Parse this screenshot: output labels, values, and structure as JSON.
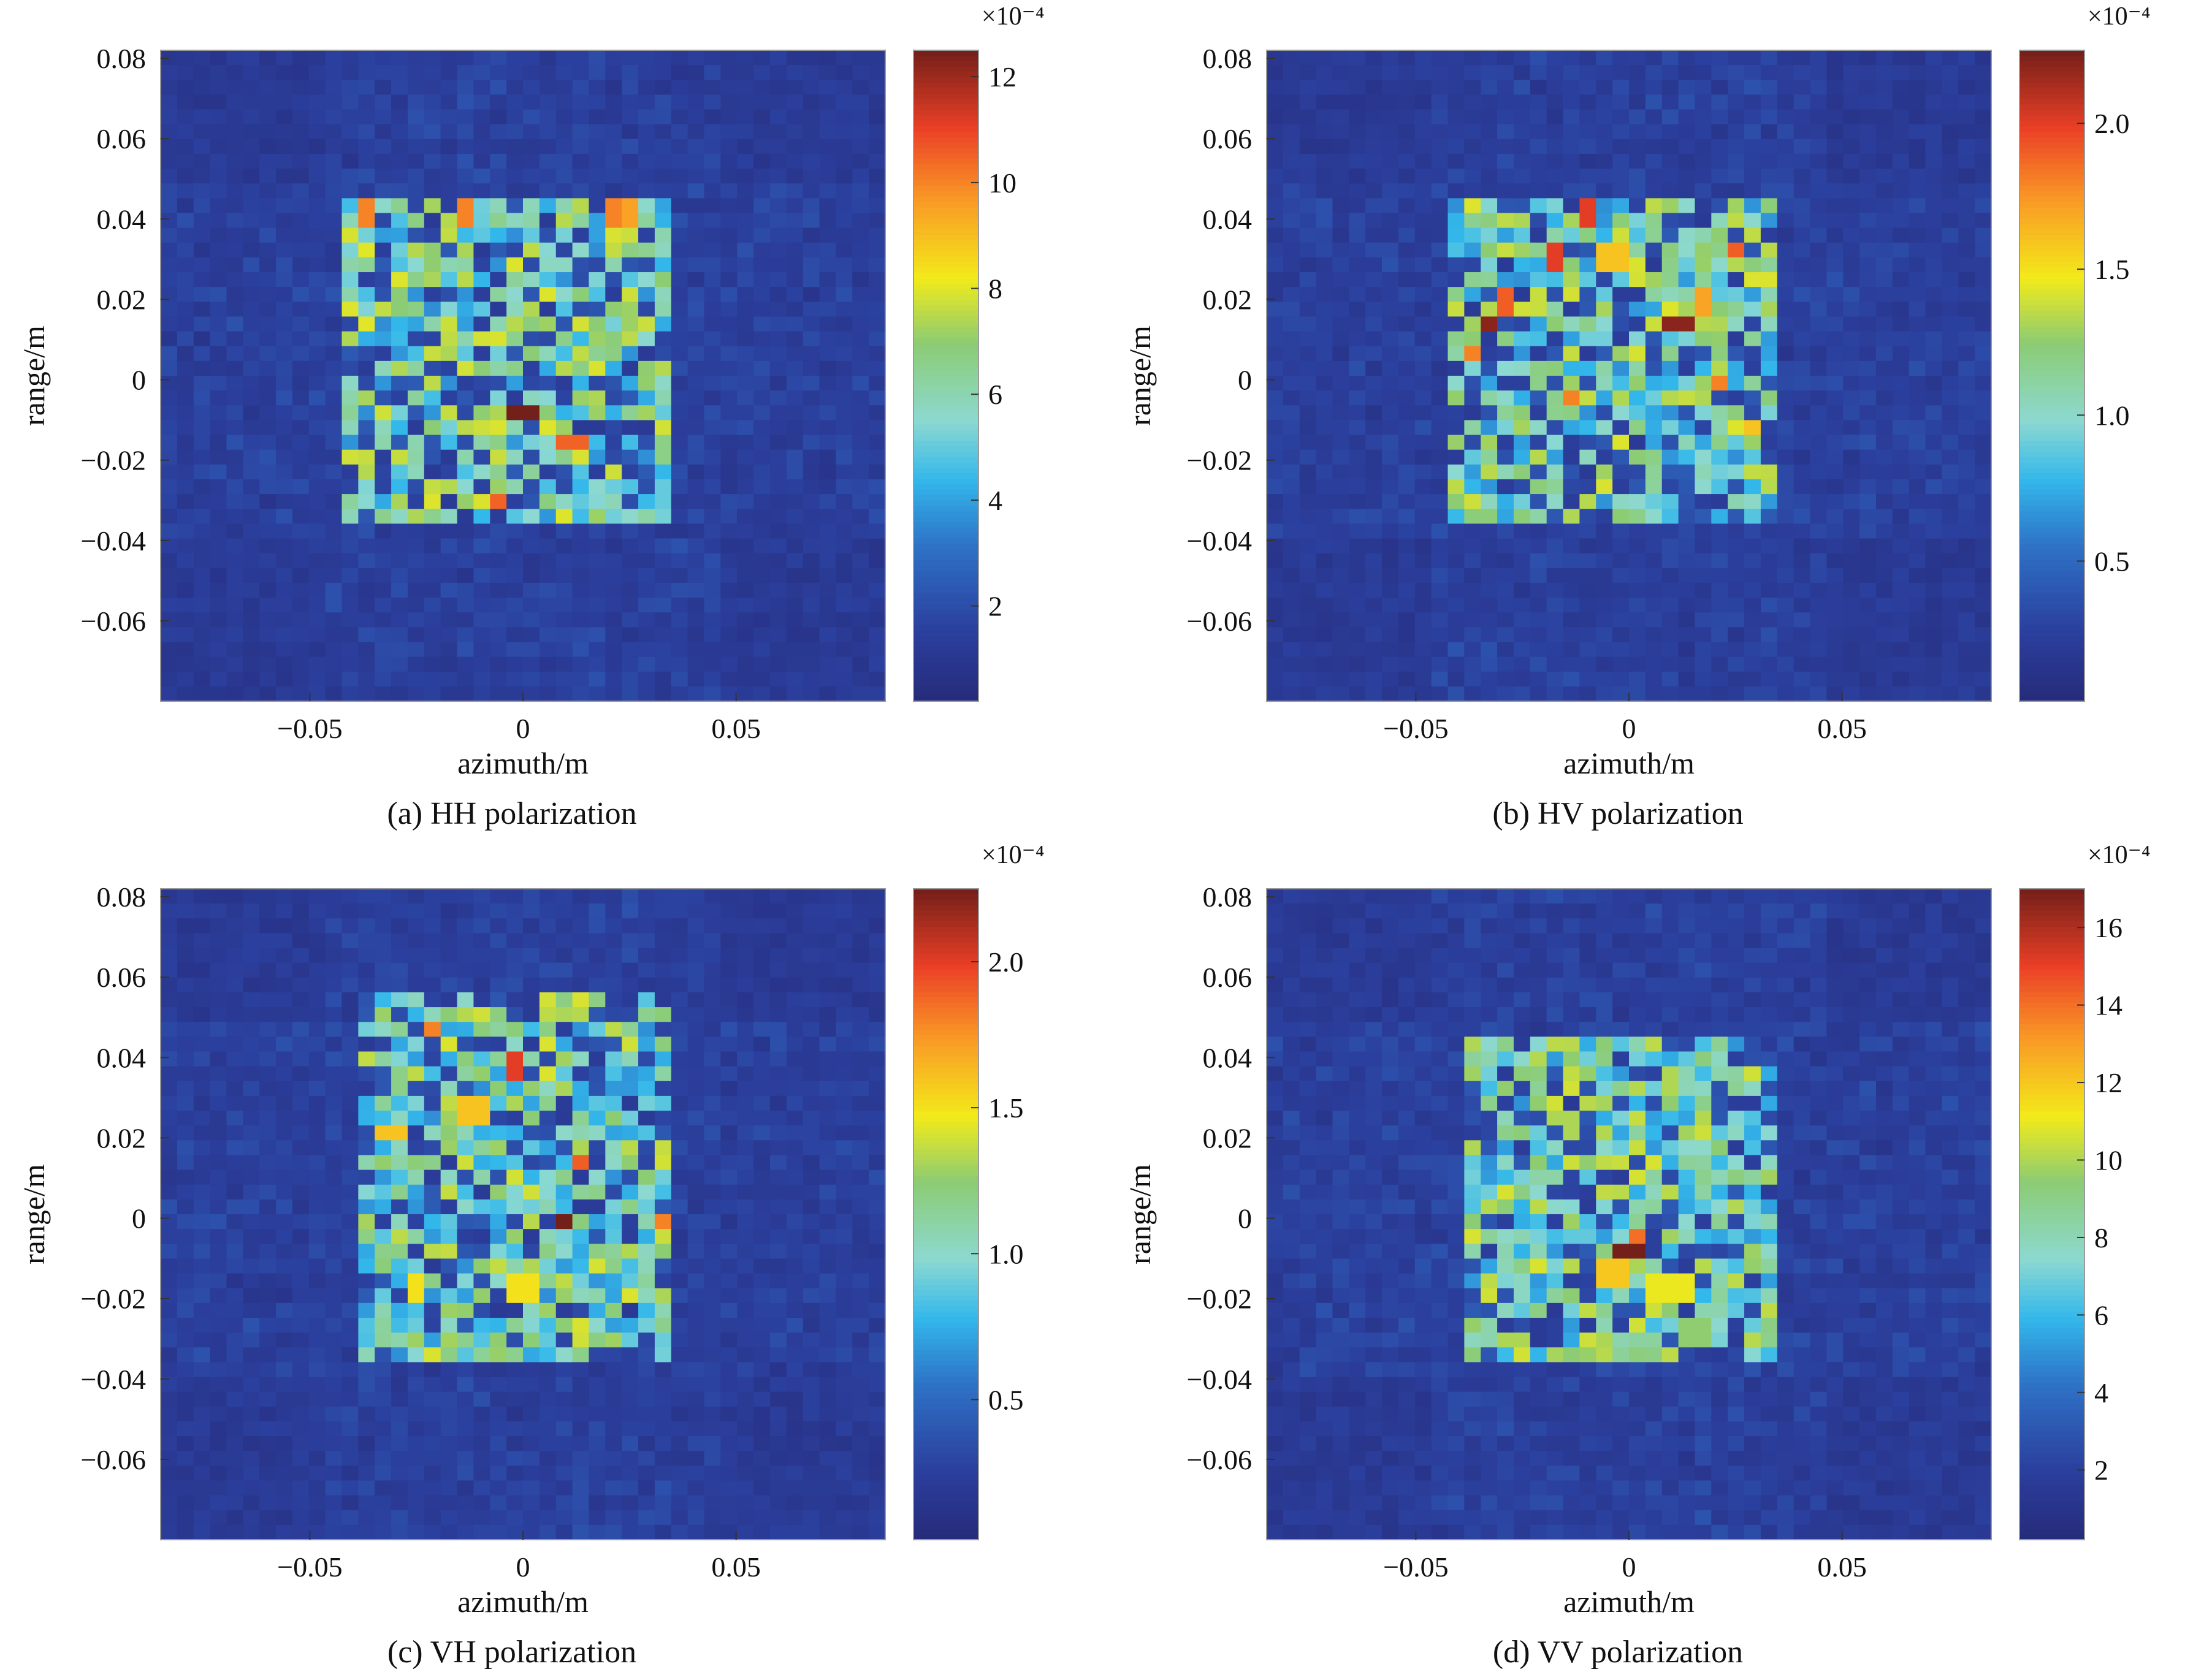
{
  "chart_data": [
    {
      "type": "heatmap",
      "caption": "(a) HH polarization",
      "xlabel": "azimuth/m",
      "ylabel": "range/m",
      "xlim": [
        -0.085,
        0.085
      ],
      "ylim": [
        -0.08,
        0.082
      ],
      "xticks": [
        -0.05,
        0,
        0.05
      ],
      "xtick_labels": [
        "−0.05",
        "0",
        "0.05"
      ],
      "yticks": [
        0.08,
        0.06,
        0.04,
        0.02,
        0,
        -0.02,
        -0.04,
        -0.06
      ],
      "ytick_labels": [
        "0.08",
        "0.06",
        "0.04",
        "0.02",
        "0",
        "−0.02",
        "−0.04",
        "−0.06"
      ],
      "colorbar": {
        "min": 0.2,
        "max": 12.5,
        "exponent_label": "×10⁻⁴",
        "ticks": [
          2,
          4,
          6,
          8,
          10,
          12
        ],
        "tick_labels": [
          "2",
          "4",
          "6",
          "8",
          "10",
          "12"
        ]
      },
      "target_region": {
        "x": [
          -0.042,
          0.033
        ],
        "y": [
          -0.036,
          0.045
        ]
      },
      "peaks": [
        [
          0.0,
          -0.009,
          12.5
        ],
        [
          0.012,
          -0.016,
          10.5
        ],
        [
          -0.006,
          -0.03,
          10.5
        ],
        [
          -0.038,
          0.041,
          10
        ],
        [
          -0.014,
          0.041,
          10
        ],
        [
          0.02,
          0.041,
          10
        ],
        [
          0.024,
          0.041,
          9.5
        ],
        [
          -0.036,
          0.032,
          8
        ],
        [
          -0.037,
          0.013,
          8
        ],
        [
          -0.014,
          0.025,
          7.5
        ],
        [
          -0.022,
          0.03,
          7
        ]
      ],
      "seed": 11
    },
    {
      "type": "heatmap",
      "caption": "(b) HV polarization",
      "xlabel": "azimuth/m",
      "ylabel": "range/m",
      "xlim": [
        -0.085,
        0.085
      ],
      "ylim": [
        -0.08,
        0.082
      ],
      "xticks": [
        -0.05,
        0,
        0.05
      ],
      "xtick_labels": [
        "−0.05",
        "0",
        "0.05"
      ],
      "yticks": [
        0.08,
        0.06,
        0.04,
        0.02,
        0,
        -0.02,
        -0.04,
        -0.06
      ],
      "ytick_labels": [
        "0.08",
        "0.06",
        "0.04",
        "0.02",
        "0",
        "−0.02",
        "−0.04",
        "−0.06"
      ],
      "colorbar": {
        "min": 0.02,
        "max": 2.25,
        "exponent_label": "×10⁻⁴",
        "ticks": [
          0.5,
          1.0,
          1.5,
          2.0
        ],
        "tick_labels": [
          "0.5",
          "1.0",
          "1.5",
          "2.0"
        ]
      },
      "target_region": {
        "x": [
          -0.042,
          0.036
        ],
        "y": [
          -0.036,
          0.047
        ]
      },
      "peaks": [
        [
          -0.033,
          0.015,
          2.2
        ],
        [
          0.012,
          0.015,
          2.2
        ],
        [
          -0.017,
          0.03,
          2.0
        ],
        [
          -0.009,
          0.041,
          2.0
        ],
        [
          -0.028,
          0.019,
          1.9
        ],
        [
          0.024,
          0.033,
          1.9
        ],
        [
          -0.037,
          0.007,
          1.8
        ],
        [
          0.022,
          0.0,
          1.8
        ],
        [
          -0.014,
          -0.004,
          1.8
        ],
        [
          0.03,
          -0.012,
          1.6
        ],
        [
          -0.004,
          0.03,
          1.6
        ],
        [
          0.017,
          0.019,
          1.7
        ]
      ],
      "seed": 23
    },
    {
      "type": "heatmap",
      "caption": "(c) VH polarization",
      "xlabel": "azimuth/m",
      "ylabel": "range/m",
      "xlim": [
        -0.085,
        0.085
      ],
      "ylim": [
        -0.08,
        0.082
      ],
      "xticks": [
        -0.05,
        0,
        0.05
      ],
      "xtick_labels": [
        "−0.05",
        "0",
        "0.05"
      ],
      "yticks": [
        0.08,
        0.06,
        0.04,
        0.02,
        0,
        -0.02,
        -0.04,
        -0.06
      ],
      "ytick_labels": [
        "0.08",
        "0.06",
        "0.04",
        "0.02",
        "0",
        "−0.02",
        "−0.04",
        "−0.06"
      ],
      "colorbar": {
        "min": 0.02,
        "max": 2.25,
        "exponent_label": "×10⁻⁴",
        "ticks": [
          0.5,
          1.0,
          1.5,
          2.0
        ],
        "tick_labels": [
          "0.5",
          "1.0",
          "1.5",
          "2.0"
        ]
      },
      "target_region": {
        "x": [
          -0.04,
          0.036
        ],
        "y": [
          -0.035,
          0.055
        ]
      },
      "peaks": [
        [
          0.011,
          0.0,
          2.25
        ],
        [
          -0.002,
          0.038,
          2.0
        ],
        [
          0.013,
          0.015,
          1.9
        ],
        [
          -0.022,
          0.047,
          1.8
        ],
        [
          0.033,
          -0.002,
          1.8
        ],
        [
          -0.031,
          0.022,
          1.6
        ],
        [
          -0.012,
          0.027,
          1.6
        ],
        [
          0.0,
          -0.018,
          1.5
        ],
        [
          -0.025,
          -0.018,
          1.5
        ],
        [
          0.013,
          -0.028,
          1.3
        ],
        [
          -0.037,
          0.0,
          1.3
        ]
      ],
      "seed": 37
    },
    {
      "type": "heatmap",
      "caption": "(d) VV polarization",
      "xlabel": "azimuth/m",
      "ylabel": "range/m",
      "xlim": [
        -0.085,
        0.085
      ],
      "ylim": [
        -0.08,
        0.082
      ],
      "xticks": [
        -0.05,
        0,
        0.05
      ],
      "xtick_labels": [
        "−0.05",
        "0",
        "0.05"
      ],
      "yticks": [
        0.08,
        0.06,
        0.04,
        0.02,
        0,
        -0.02,
        -0.04,
        -0.06
      ],
      "ytick_labels": [
        "0.08",
        "0.06",
        "0.04",
        "0.02",
        "0",
        "−0.02",
        "−0.04",
        "−0.06"
      ],
      "colorbar": {
        "min": 0.2,
        "max": 17,
        "exponent_label": "×10⁻⁴",
        "ticks": [
          2,
          4,
          6,
          8,
          10,
          12,
          14,
          16
        ],
        "tick_labels": [
          "2",
          "4",
          "6",
          "8",
          "10",
          "12",
          "14",
          "16"
        ]
      },
      "target_region": {
        "x": [
          -0.04,
          0.035
        ],
        "y": [
          -0.036,
          0.045
        ]
      },
      "peaks": [
        [
          0.0,
          -0.009,
          17
        ],
        [
          0.003,
          -0.006,
          14
        ],
        [
          -0.004,
          -0.014,
          12
        ],
        [
          0.005,
          -0.018,
          11
        ],
        [
          0.012,
          -0.017,
          11
        ],
        [
          -0.01,
          -0.03,
          10.5
        ],
        [
          -0.006,
          -0.031,
          10
        ],
        [
          -0.016,
          0.025,
          10
        ],
        [
          -0.012,
          0.013,
          9.5
        ],
        [
          -0.027,
          -0.031,
          10
        ],
        [
          0.016,
          -0.029,
          9.5
        ]
      ],
      "seed": 51
    }
  ]
}
